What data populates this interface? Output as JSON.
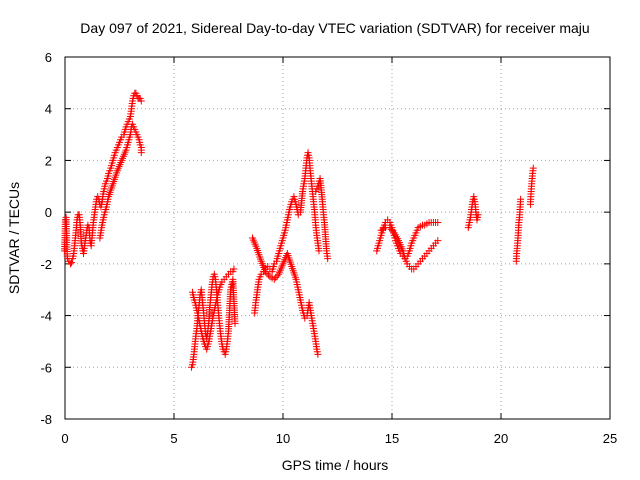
{
  "chart_data": {
    "type": "scatter",
    "title": "Day 097 of 2021, Sidereal Day-to-day VTEC variation (SDTVAR) for receiver maju",
    "xlabel": "GPS time / hours",
    "ylabel": "SDTVAR / TECUs",
    "xlim": [
      0,
      25
    ],
    "ylim": [
      -8,
      6
    ],
    "xticks": [
      0,
      5,
      10,
      15,
      20,
      25
    ],
    "yticks": [
      -8,
      -6,
      -4,
      -2,
      0,
      2,
      4,
      6
    ],
    "grid": true,
    "marker": "+",
    "color": "#ff0000",
    "series": [
      {
        "x": [
          -0.02,
          0.02,
          0.05,
          0.1,
          0.12,
          0.18,
          0.25,
          0.3,
          0.35,
          0.4,
          0.45,
          0.5,
          0.55,
          0.6,
          0.65,
          0.7,
          0.75,
          0.8,
          0.85,
          0.9,
          0.95,
          1.0,
          1.05,
          1.1,
          1.15,
          1.2,
          1.25,
          1.3,
          1.35,
          1.4,
          1.45,
          1.5,
          1.55,
          1.6,
          1.65,
          1.7,
          1.75,
          1.8,
          1.85,
          1.9,
          1.95,
          2.0,
          2.1,
          2.2,
          2.3,
          2.4,
          2.5,
          2.6,
          2.7,
          2.8,
          2.9,
          3.0,
          3.05,
          3.1,
          3.15,
          3.2,
          3.25,
          3.3,
          3.35,
          3.4,
          3.45,
          3.5
        ],
        "y": [
          -1.5,
          -0.3,
          -0.2,
          -1.7,
          -1.8,
          -1.9,
          -2.0,
          -1.95,
          -1.8,
          -1.6,
          -1.2,
          -0.8,
          -0.3,
          -0.1,
          -0.1,
          -0.5,
          -1.2,
          -1.4,
          -1.6,
          -1.3,
          -1.0,
          -0.7,
          -0.5,
          -0.6,
          -1.1,
          -1.3,
          -0.9,
          -0.4,
          -0.1,
          0.2,
          0.5,
          0.6,
          0.5,
          0.3,
          0.2,
          0.4,
          0.7,
          0.9,
          1.1,
          1.2,
          1.3,
          1.5,
          1.7,
          2.0,
          2.3,
          2.5,
          2.7,
          2.9,
          3.0,
          3.3,
          3.5,
          3.7,
          4.0,
          4.3,
          4.5,
          4.6,
          4.6,
          4.5,
          4.4,
          4.4,
          4.4,
          4.3
        ]
      },
      {
        "x": [
          1.6,
          1.7,
          1.8,
          1.9,
          2.0,
          2.2,
          2.4,
          2.6,
          2.8,
          2.9,
          3.0,
          3.05,
          3.1,
          3.15,
          3.2,
          3.25,
          3.3,
          3.35,
          3.4,
          3.45,
          3.5,
          3.5
        ],
        "y": [
          -1.0,
          -0.5,
          -0.1,
          0.2,
          0.6,
          1.1,
          1.6,
          2.0,
          2.4,
          2.7,
          3.0,
          3.3,
          3.4,
          3.3,
          3.2,
          3.1,
          3.0,
          2.9,
          2.8,
          2.6,
          2.5,
          2.3
        ]
      },
      {
        "x": [
          5.8,
          5.85,
          5.9,
          5.95,
          6.0,
          6.05,
          6.1,
          6.15,
          6.2,
          6.25,
          6.3,
          6.35,
          6.4,
          6.45,
          6.5,
          6.55,
          6.6,
          6.65,
          6.7,
          6.75,
          6.8,
          6.85,
          6.9,
          6.95,
          7.0,
          7.05,
          7.1,
          7.15,
          7.2,
          7.25,
          7.3,
          7.35,
          7.4,
          7.45,
          7.5,
          7.6,
          7.7,
          7.8
        ],
        "y": [
          -6.0,
          -5.9,
          -5.6,
          -5.2,
          -4.8,
          -4.5,
          -4.0,
          -3.6,
          -3.2,
          -3.0,
          -3.4,
          -3.8,
          -4.3,
          -4.7,
          -4.9,
          -4.6,
          -4.2,
          -3.6,
          -3.2,
          -2.8,
          -2.5,
          -2.4,
          -2.6,
          -3.0,
          -3.5,
          -4.0,
          -4.4,
          -4.8,
          -5.1,
          -5.3,
          -5.4,
          -5.5,
          -5.3,
          -5.0,
          -4.6,
          -3.0,
          -2.6,
          -4.3
        ]
      },
      {
        "x": [
          5.85,
          5.9,
          6.0,
          6.1,
          6.2,
          6.3,
          6.4,
          6.5,
          6.6,
          6.7,
          6.8,
          6.9,
          7.0,
          7.1,
          7.2,
          7.3,
          7.4,
          7.5,
          7.6,
          7.7,
          7.75
        ],
        "y": [
          -3.1,
          -3.3,
          -3.6,
          -4.0,
          -4.4,
          -4.8,
          -5.1,
          -5.3,
          -5.0,
          -4.5,
          -4.0,
          -3.6,
          -3.2,
          -2.9,
          -2.7,
          -2.6,
          -2.5,
          -2.4,
          -2.3,
          -2.3,
          -2.2
        ]
      },
      {
        "x": [
          8.7,
          8.75,
          8.8,
          8.85,
          8.9,
          9.0,
          9.1,
          9.2,
          9.3,
          9.4,
          9.5,
          9.6,
          9.7,
          9.8,
          9.9,
          10.0,
          10.1,
          10.2,
          10.3,
          10.4,
          10.5,
          10.6,
          10.7,
          10.8,
          10.9,
          11.0,
          11.05,
          11.1,
          11.15,
          11.2,
          11.25,
          11.3,
          11.35,
          11.4,
          11.45,
          11.5,
          11.55,
          11.6,
          11.65
        ],
        "y": [
          -3.9,
          -3.5,
          -3.2,
          -2.9,
          -2.6,
          -2.4,
          -2.3,
          -2.2,
          -2.1,
          -2.2,
          -2.3,
          -2.0,
          -1.9,
          -1.6,
          -1.3,
          -1.0,
          -0.7,
          -0.3,
          0.1,
          0.4,
          0.6,
          0.3,
          -0.1,
          0.0,
          0.8,
          1.3,
          1.7,
          2.1,
          2.3,
          2.1,
          1.6,
          1.2,
          0.8,
          0.4,
          0.0,
          -0.5,
          -0.9,
          -1.2,
          -1.5
        ]
      },
      {
        "x": [
          8.6,
          8.8,
          9.0,
          9.2,
          9.4,
          9.6,
          9.8,
          10.0,
          10.2,
          10.4,
          10.6,
          10.7,
          10.8,
          10.9,
          11.0,
          11.1,
          11.2,
          11.3,
          11.4,
          11.5,
          11.55,
          11.6
        ],
        "y": [
          -1.0,
          -1.4,
          -1.9,
          -2.3,
          -2.5,
          -2.6,
          -2.4,
          -2.0,
          -1.6,
          -2.1,
          -2.6,
          -3.0,
          -3.4,
          -3.8,
          -4.1,
          -4.0,
          -3.5,
          -4.0,
          -4.5,
          -5.0,
          -5.3,
          -5.5
        ]
      },
      {
        "x": [
          11.5,
          11.6,
          11.7,
          11.8,
          11.85,
          11.9,
          12.0,
          12.05
        ],
        "y": [
          0.8,
          1.0,
          1.3,
          0.5,
          0.0,
          -0.4,
          -1.5,
          -1.8
        ]
      },
      {
        "x": [
          14.3,
          14.4,
          14.5,
          14.6,
          14.7,
          14.8,
          14.9,
          15.0,
          15.1,
          15.2,
          15.3,
          15.4,
          15.5,
          15.6,
          15.7,
          15.8,
          15.9,
          16.0,
          16.1,
          16.2,
          16.3,
          16.4,
          16.5,
          16.6,
          16.7,
          16.8,
          16.9,
          17.0,
          17.1
        ],
        "y": [
          -1.5,
          -1.2,
          -0.9,
          -0.6,
          -0.4,
          -0.3,
          -0.4,
          -0.6,
          -0.9,
          -1.2,
          -1.4,
          -1.6,
          -1.7,
          -1.8,
          -1.7,
          -1.5,
          -1.2,
          -1.0,
          -0.8,
          -0.6,
          -0.55,
          -0.5,
          -0.5,
          -0.45,
          -0.4,
          -0.4,
          -0.4,
          -0.4,
          -0.4
        ]
      },
      {
        "x": [
          14.5,
          14.7,
          14.9,
          15.1,
          15.3,
          15.5,
          15.6,
          15.7,
          15.8,
          15.9,
          16.0,
          16.1,
          16.2,
          16.3,
          16.4,
          16.5,
          16.6,
          16.7,
          16.8,
          16.9,
          17.0,
          17.1
        ],
        "y": [
          -0.7,
          -0.6,
          -0.6,
          -0.8,
          -1.1,
          -1.5,
          -1.8,
          -2.0,
          -2.1,
          -2.2,
          -2.2,
          -2.1,
          -2.0,
          -1.9,
          -1.8,
          -1.7,
          -1.6,
          -1.5,
          -1.4,
          -1.3,
          -1.2,
          -1.1
        ]
      },
      {
        "x": [
          18.5,
          18.55,
          18.6,
          18.65,
          18.7,
          18.75,
          18.8,
          18.85,
          18.9,
          18.95
        ],
        "y": [
          -0.6,
          -0.4,
          -0.2,
          0.1,
          0.4,
          0.6,
          0.4,
          0.0,
          -0.3,
          -0.1
        ]
      },
      {
        "x": [
          20.7,
          20.72,
          20.75,
          20.78,
          20.8,
          20.82,
          20.85,
          20.88,
          20.9
        ],
        "y": [
          -1.9,
          -1.6,
          -1.3,
          -1.0,
          -0.7,
          -0.4,
          -0.2,
          0.2,
          0.5
        ]
      },
      {
        "x": [
          21.35,
          21.38,
          21.4,
          21.42,
          21.45,
          21.48
        ],
        "y": [
          0.3,
          0.8,
          1.0,
          1.2,
          1.5,
          1.7
        ]
      }
    ]
  }
}
